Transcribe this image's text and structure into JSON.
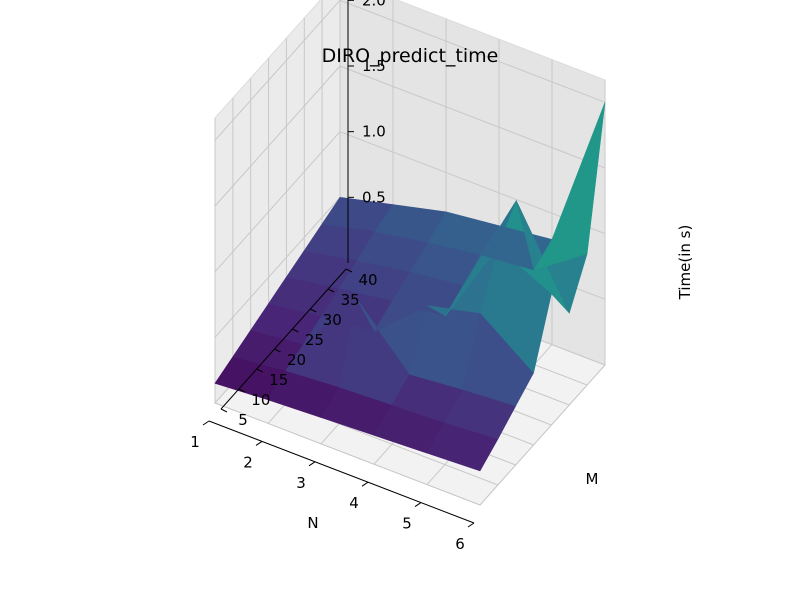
{
  "chart_data": {
    "type": "surface3d",
    "title": "DIRO_predict_time",
    "xlabel": "N",
    "ylabel": "M",
    "zlabel": "Time(in s)",
    "x_ticks": [
      "1",
      "2",
      "3",
      "4",
      "5",
      "6"
    ],
    "y_ticks": [
      "5",
      "10",
      "15",
      "20",
      "25",
      "30",
      "35",
      "40"
    ],
    "z_ticks": [
      "0.5",
      "1.0",
      "1.5",
      "2.0"
    ],
    "xlim": [
      1,
      6
    ],
    "ylim": [
      5,
      40
    ],
    "zlim": [
      0.1,
      2.05
    ],
    "colormap": "viridis",
    "grid": true,
    "N": [
      1,
      2,
      3,
      4,
      5,
      6
    ],
    "M": [
      5,
      10,
      15,
      20,
      25,
      30,
      35,
      40
    ],
    "time": [
      [
        0.15,
        0.2,
        0.25,
        0.3,
        0.35,
        0.4,
        0.45,
        0.5
      ],
      [
        0.18,
        0.25,
        0.3,
        0.36,
        0.42,
        0.48,
        0.55,
        0.6
      ],
      [
        0.2,
        0.28,
        0.8,
        0.4,
        0.48,
        0.55,
        0.62,
        0.7
      ],
      [
        0.22,
        0.3,
        0.38,
        0.75,
        0.52,
        0.6,
        0.68,
        0.75
      ],
      [
        0.24,
        0.32,
        0.42,
        0.85,
        1.2,
        1.4,
        0.72,
        0.8
      ],
      [
        0.26,
        0.35,
        0.45,
        0.55,
        1.0,
        0.7,
        1.0,
        2.0
      ]
    ]
  }
}
